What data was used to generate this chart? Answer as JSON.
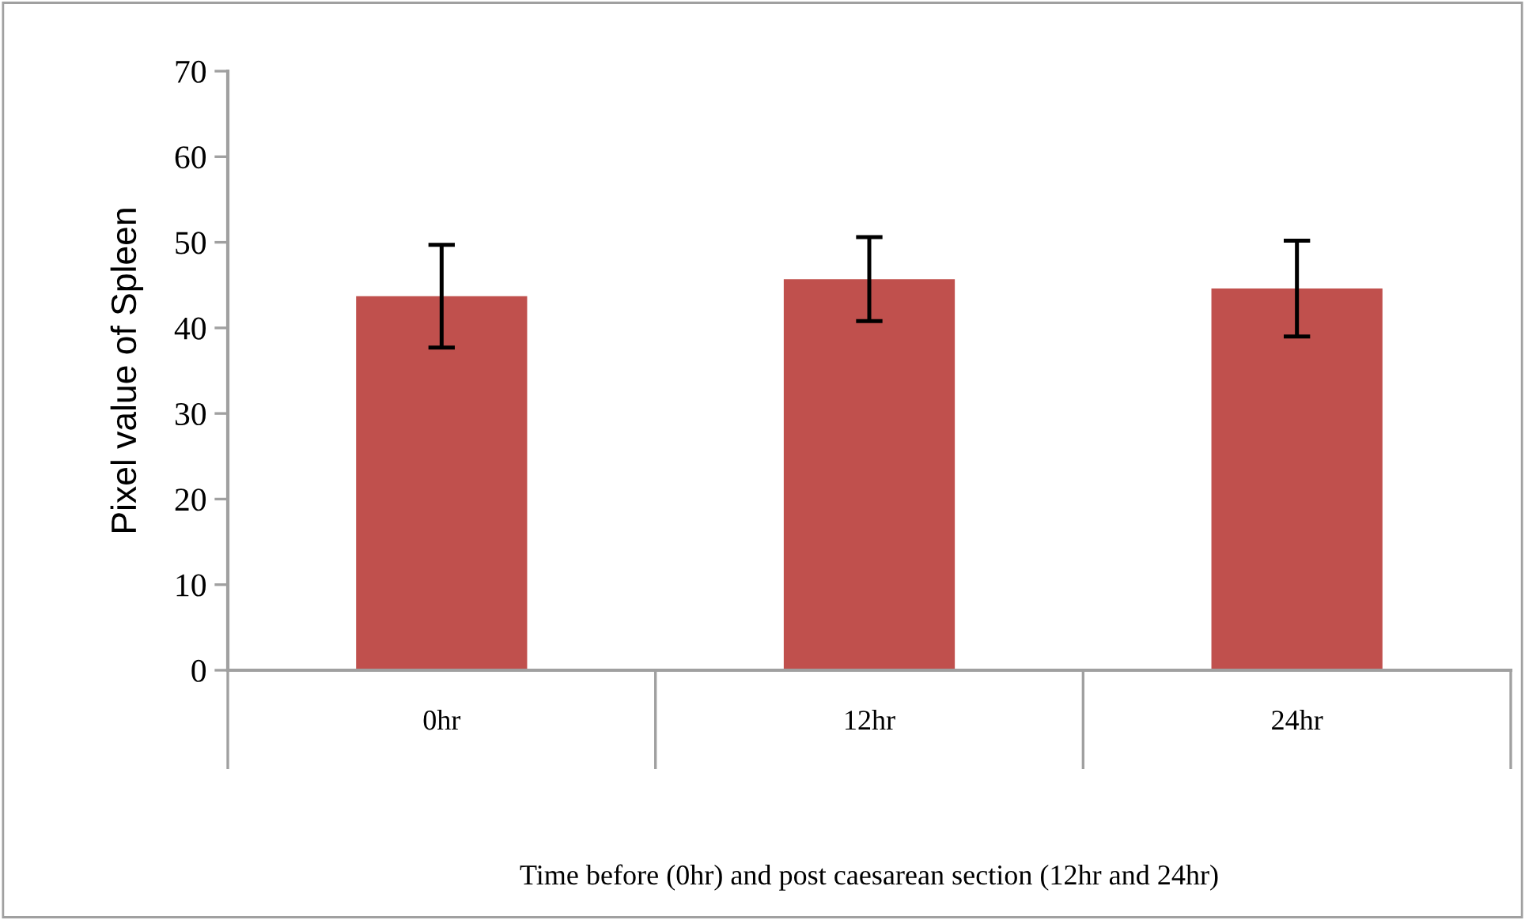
{
  "chart_data": {
    "type": "bar",
    "ylabel": "Pixel value of Spleen",
    "xlabel": "Time before (0hr) and post caesarean section (12hr and 24hr)",
    "categories": [
      "0hr",
      "12hr",
      "24hr"
    ],
    "values": [
      43.7,
      45.7,
      44.6
    ],
    "errors": [
      6.0,
      4.9,
      5.6
    ],
    "color": "#c0504d",
    "ylim": [
      0,
      70
    ],
    "yticks": [
      0,
      10,
      20,
      30,
      40,
      50,
      60,
      70
    ],
    "grid": false,
    "legend": false
  }
}
